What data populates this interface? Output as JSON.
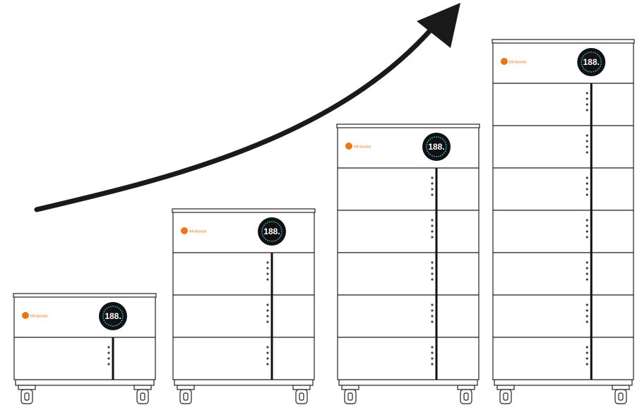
{
  "units": [
    {
      "brand": "felicitysolar",
      "display": "188."
    },
    {
      "brand": "felicitysolar",
      "display": "188."
    },
    {
      "brand": "felicitysolar",
      "display": "188."
    },
    {
      "brand": "felicitysolar",
      "display": "188."
    }
  ]
}
